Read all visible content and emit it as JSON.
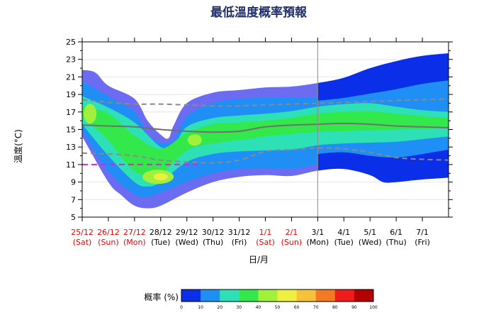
{
  "colors": {
    "weekend": "#e60000",
    "weekday": "#000000",
    "title": "#1f2f6b",
    "median": "#707070",
    "percentile": "#8a8a8a",
    "normal_min": "#e020e0",
    "bands": [
      "#0b2ee8",
      "#1f8ff5",
      "#2de0b6",
      "#33e84a",
      "#a0f03c",
      "#eef040",
      "#f7c23a",
      "#f27a22",
      "#f01c1c",
      "#b40000"
    ],
    "outer_envelope": "#6c6cf2"
  },
  "chart_data": {
    "type": "area",
    "title": "最低溫度概率預報",
    "xlabel": "日/月",
    "ylabel": "溫度(°C)",
    "ylim": [
      5,
      25
    ],
    "yticks": [
      5,
      7,
      9,
      11,
      13,
      15,
      17,
      19,
      21,
      23,
      25
    ],
    "categories": [
      {
        "date": "25/12",
        "day": "(Sat)",
        "weekend": true
      },
      {
        "date": "26/12",
        "day": "(Sun)",
        "weekend": true
      },
      {
        "date": "27/12",
        "day": "(Mon)",
        "weekend": true
      },
      {
        "date": "28/12",
        "day": "(Tue)",
        "weekend": false
      },
      {
        "date": "29/12",
        "day": "(Wed)",
        "weekend": false
      },
      {
        "date": "30/12",
        "day": "(Thu)",
        "weekend": false
      },
      {
        "date": "31/12",
        "day": "(Fri)",
        "weekend": false
      },
      {
        "date": "1/1",
        "day": "(Sat)",
        "weekend": true
      },
      {
        "date": "2/1",
        "day": "(Sun)",
        "weekend": true
      },
      {
        "date": "3/1",
        "day": "(Mon)",
        "weekend": false
      },
      {
        "date": "4/1",
        "day": "(Tue)",
        "weekend": false
      },
      {
        "date": "5/1",
        "day": "(Wed)",
        "weekend": false
      },
      {
        "date": "6/1",
        "day": "(Thu)",
        "weekend": false
      },
      {
        "date": "7/1",
        "day": "(Fri)",
        "weekend": false
      }
    ],
    "x_range_days": [
      0,
      14
    ],
    "vertical_divider_day": 9,
    "median": [
      [
        0,
        15.5
      ],
      [
        1,
        15.4
      ],
      [
        2,
        15.3
      ],
      [
        3,
        15.0
      ],
      [
        4,
        14.8
      ],
      [
        5,
        14.7
      ],
      [
        6,
        14.8
      ],
      [
        7,
        15.3
      ],
      [
        8,
        15.5
      ],
      [
        9,
        15.6
      ],
      [
        10,
        15.7
      ],
      [
        11,
        15.6
      ],
      [
        12,
        15.4
      ],
      [
        13,
        15.3
      ],
      [
        14,
        15.2
      ]
    ],
    "upper_percentile": [
      [
        0,
        18.4
      ],
      [
        1,
        18.1
      ],
      [
        2,
        17.9
      ],
      [
        3,
        17.9
      ],
      [
        4,
        17.8
      ],
      [
        5,
        17.7
      ],
      [
        6,
        17.7
      ],
      [
        7,
        17.8
      ],
      [
        8,
        17.9
      ],
      [
        9,
        18.0
      ],
      [
        10,
        18.1
      ],
      [
        11,
        18.2
      ],
      [
        12,
        18.3
      ],
      [
        13,
        18.4
      ],
      [
        14,
        18.5
      ]
    ],
    "lower_percentile": [
      [
        0,
        12.3
      ],
      [
        1,
        12.2
      ],
      [
        2,
        12.0
      ],
      [
        3,
        11.5
      ],
      [
        4,
        11.3
      ],
      [
        5,
        11.2
      ],
      [
        6,
        11.5
      ],
      [
        7,
        12.5
      ],
      [
        8,
        12.7
      ],
      [
        9,
        12.9
      ],
      [
        10,
        12.8
      ],
      [
        11,
        12.4
      ],
      [
        12,
        11.8
      ],
      [
        13,
        11.6
      ],
      [
        14,
        11.5
      ]
    ],
    "normal_min_line": {
      "x_range": [
        0,
        4.5
      ],
      "value": 11.0
    },
    "probability_envelope": {
      "upper_outer": [
        [
          0,
          21.8
        ],
        [
          0.5,
          21.5
        ],
        [
          1,
          20.0
        ],
        [
          2,
          18.5
        ],
        [
          2.5,
          16.0
        ],
        [
          3,
          14.4
        ],
        [
          3.3,
          14.0
        ],
        [
          3.5,
          15.5
        ],
        [
          4,
          18.0
        ],
        [
          5,
          19.2
        ],
        [
          6,
          19.5
        ],
        [
          7,
          19.8
        ],
        [
          8,
          19.9
        ],
        [
          9,
          20.3
        ],
        [
          10,
          20.9
        ],
        [
          11,
          22.0
        ],
        [
          12,
          22.8
        ],
        [
          13,
          23.4
        ],
        [
          14,
          23.7
        ]
      ],
      "lower_outer": [
        [
          0,
          14.2
        ],
        [
          1,
          9.0
        ],
        [
          1.5,
          7.5
        ],
        [
          2,
          6.3
        ],
        [
          2.5,
          6.0
        ],
        [
          3,
          6.3
        ],
        [
          4,
          7.8
        ],
        [
          5,
          9.0
        ],
        [
          6,
          9.6
        ],
        [
          7,
          9.8
        ],
        [
          8,
          9.7
        ],
        [
          9,
          10.3
        ],
        [
          10,
          10.5
        ],
        [
          11,
          9.8
        ],
        [
          11.5,
          9.0
        ],
        [
          12,
          9.0
        ],
        [
          13,
          9.3
        ],
        [
          14,
          9.5
        ]
      ],
      "upper_mid": [
        [
          0,
          20.5
        ],
        [
          1,
          18.8
        ],
        [
          2,
          17.0
        ],
        [
          2.5,
          14.5
        ],
        [
          3,
          13.5
        ],
        [
          3.5,
          13.8
        ],
        [
          4,
          16.5
        ],
        [
          5,
          18.0
        ],
        [
          6,
          18.5
        ],
        [
          7,
          18.6
        ],
        [
          8,
          18.6
        ],
        [
          9,
          18.7
        ],
        [
          10,
          19.0
        ],
        [
          11,
          19.5
        ],
        [
          12,
          20.0
        ],
        [
          13,
          20.6
        ],
        [
          14,
          21.0
        ]
      ],
      "lower_mid": [
        [
          0,
          14.8
        ],
        [
          1,
          10.2
        ],
        [
          2,
          7.6
        ],
        [
          2.5,
          7.3
        ],
        [
          3,
          7.8
        ],
        [
          4,
          9.0
        ],
        [
          5,
          10.0
        ],
        [
          6,
          10.5
        ],
        [
          7,
          10.6
        ],
        [
          8,
          10.5
        ],
        [
          9,
          11.0
        ],
        [
          10,
          11.2
        ],
        [
          11,
          10.8
        ],
        [
          12,
          10.6
        ],
        [
          13,
          11.0
        ],
        [
          14,
          11.5
        ]
      ],
      "upper_inner": [
        [
          0,
          18.8
        ],
        [
          1,
          17.5
        ],
        [
          2,
          15.8
        ],
        [
          3,
          13.0
        ],
        [
          3.5,
          13.2
        ],
        [
          4,
          15.3
        ],
        [
          5,
          16.3
        ],
        [
          6,
          16.6
        ],
        [
          7,
          16.8
        ],
        [
          8,
          17.1
        ],
        [
          9,
          17.6
        ],
        [
          10,
          17.9
        ],
        [
          11,
          18.0
        ],
        [
          12,
          17.6
        ],
        [
          13,
          17.2
        ],
        [
          14,
          17.0
        ]
      ],
      "lower_inner": [
        [
          0,
          15.6
        ],
        [
          1,
          12.0
        ],
        [
          2,
          9.0
        ],
        [
          2.5,
          8.5
        ],
        [
          3,
          9.0
        ],
        [
          4,
          11.3
        ],
        [
          5,
          12.2
        ],
        [
          6,
          12.5
        ],
        [
          7,
          12.6
        ],
        [
          8,
          12.7
        ],
        [
          9,
          13.2
        ],
        [
          10,
          13.4
        ],
        [
          11,
          13.5
        ],
        [
          12,
          13.6
        ],
        [
          13,
          13.9
        ],
        [
          14,
          14.2
        ]
      ],
      "core_upper": [
        [
          0,
          17.6
        ],
        [
          1,
          16.8
        ],
        [
          2,
          14.3
        ],
        [
          3,
          12.8
        ],
        [
          4,
          14.6
        ],
        [
          5,
          15.6
        ],
        [
          6,
          15.8
        ],
        [
          7,
          16.0
        ],
        [
          8,
          16.3
        ],
        [
          9,
          16.8
        ],
        [
          10,
          17.0
        ],
        [
          11,
          17.1
        ],
        [
          12,
          16.8
        ],
        [
          13,
          16.5
        ],
        [
          14,
          16.3
        ]
      ],
      "core_lower": [
        [
          0,
          16.4
        ],
        [
          1,
          13.8
        ],
        [
          2,
          10.2
        ],
        [
          3,
          10.0
        ],
        [
          4,
          12.6
        ],
        [
          5,
          13.4
        ],
        [
          6,
          13.8
        ],
        [
          7,
          14.2
        ],
        [
          8,
          14.5
        ],
        [
          9,
          14.7
        ],
        [
          10,
          14.8
        ],
        [
          11,
          14.9
        ],
        [
          12,
          15.0
        ],
        [
          13,
          15.1
        ],
        [
          14,
          15.2
        ]
      ]
    },
    "colorbar": {
      "label": "概率 (%)",
      "ticks": [
        "0",
        "10",
        "20",
        "30",
        "40",
        "50",
        "60",
        "70",
        "80",
        "90",
        "100"
      ]
    }
  }
}
